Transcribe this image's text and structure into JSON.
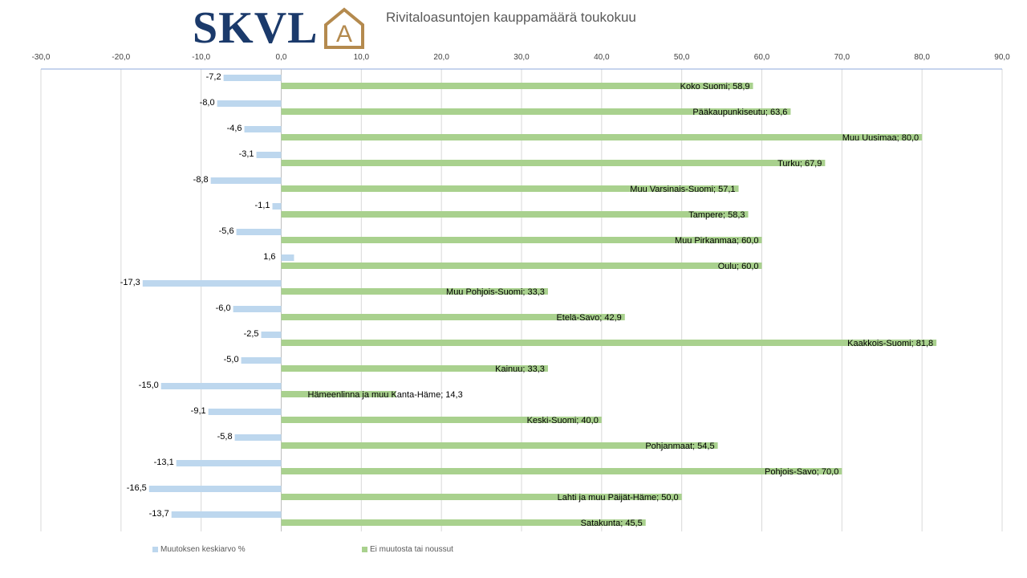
{
  "logo": {
    "text": "SKVL",
    "house_letter": "A",
    "text_color": "#1b3a6b",
    "accent_color": "#b48a4e"
  },
  "chart_data": {
    "type": "bar",
    "orientation": "horizontal",
    "title": "Rivitaloasuntojen kauppamäärä toukokuu",
    "xlim": [
      -30,
      90
    ],
    "x_ticks": [
      "-30,0",
      "-20,0",
      "-10,0",
      "0,0",
      "10,0",
      "20,0",
      "30,0",
      "40,0",
      "50,0",
      "60,0",
      "70,0",
      "80,0",
      "90,0"
    ],
    "x_tick_values": [
      -30,
      -20,
      -10,
      0,
      10,
      20,
      30,
      40,
      50,
      60,
      70,
      80,
      90
    ],
    "axis_position": "top",
    "legend_position": "bottom",
    "grid": "vertical",
    "series": [
      {
        "name": "Muutoksen keskiarvo %",
        "color": "#bdd7ee",
        "values": [
          -7.2,
          -8.0,
          -4.6,
          -3.1,
          -8.8,
          -1.1,
          -5.6,
          1.6,
          -17.3,
          -6.0,
          -2.5,
          -5.0,
          -15.0,
          -9.1,
          -5.8,
          -13.1,
          -16.5,
          -13.7
        ],
        "labels": [
          "-7,2",
          "-8,0",
          "-4,6",
          "-3,1",
          "-8,8",
          "-1,1",
          "-5,6",
          "1,6",
          "-17,3",
          "-6,0",
          "-2,5",
          "-5,0",
          "-15,0",
          "-9,1",
          "-5,8",
          "-13,1",
          "-16,5",
          "-13,7"
        ]
      },
      {
        "name": "Ei muutosta tai noussut",
        "color": "#a9d18e",
        "values": [
          58.9,
          63.6,
          80.0,
          67.9,
          57.1,
          58.3,
          60.0,
          60.0,
          33.3,
          42.9,
          81.8,
          33.3,
          14.3,
          40.0,
          54.5,
          70.0,
          50.0,
          45.5
        ],
        "labels": [
          "Koko Suomi; 58,9",
          "Pääkaupunkiseutu; 63,6",
          "Muu Uusimaa; 80,0",
          "Turku; 67,9",
          "Muu Varsinais-Suomi; 57,1",
          "Tampere; 58,3",
          "Muu Pirkanmaa; 60,0",
          "Oulu; 60,0",
          "Muu Pohjois-Suomi; 33,3",
          "Etelä-Savo; 42,9",
          "Kaakkois-Suomi; 81,8",
          "Kainuu; 33,3",
          "Hämeenlinna ja muu Kanta-Häme; 14,3",
          "Keski-Suomi; 40,0",
          "Pohjanmaat; 54,5",
          "Pohjois-Savo; 70,0",
          "Lahti ja muu Päijät-Häme; 50,0",
          "Satakunta; 45,5"
        ]
      }
    ]
  }
}
